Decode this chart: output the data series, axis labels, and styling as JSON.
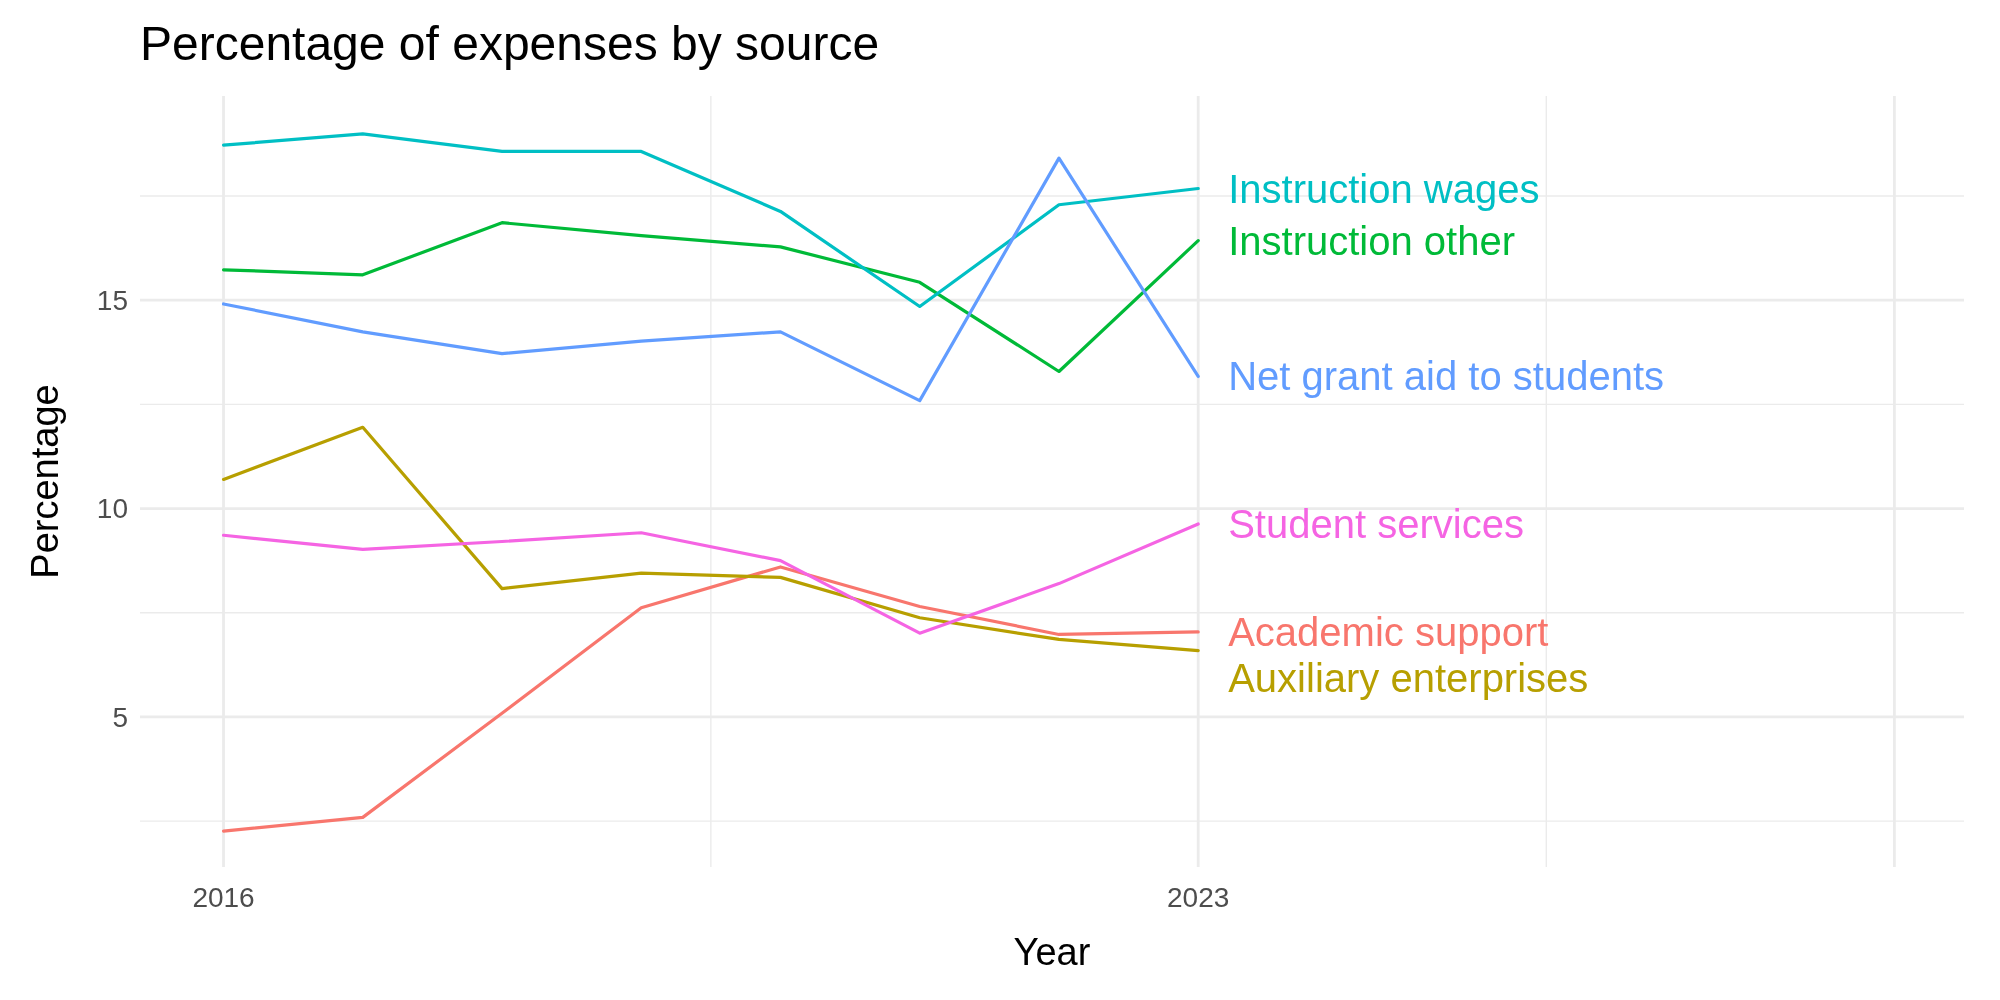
{
  "chart_data": {
    "type": "line",
    "title": "Percentage of expenses by source",
    "xlabel": "Year",
    "ylabel": "Percentage",
    "x": [
      2016,
      2017,
      2018,
      2019,
      2020,
      2021,
      2022,
      2023
    ],
    "xlim": [
      2015.4,
      2028.5
    ],
    "xticks": [
      2016,
      2023,
      {
        "value": 2028,
        "label": null
      }
    ],
    "ylim": [
      1.4,
      19.9
    ],
    "yticks": [
      5,
      10,
      15
    ],
    "grid": true,
    "line_style": "solid",
    "marker": "none",
    "series": [
      {
        "name": "Academic support",
        "color": "#f8766d",
        "values": [
          2.26,
          2.59,
          5.09,
          7.62,
          8.6,
          7.65,
          6.98,
          7.04
        ]
      },
      {
        "name": "Auxiliary enterprises",
        "color": "#b79f00",
        "values": [
          10.7,
          11.95,
          8.08,
          8.45,
          8.35,
          7.38,
          6.86,
          6.59
        ]
      },
      {
        "name": "Instruction other",
        "color": "#00ba38",
        "values": [
          15.73,
          15.61,
          16.86,
          16.55,
          16.28,
          15.43,
          13.29,
          16.43
        ]
      },
      {
        "name": "Instruction wages",
        "color": "#00bfc4",
        "values": [
          18.72,
          18.99,
          18.57,
          18.57,
          17.13,
          14.85,
          17.29,
          17.68
        ]
      },
      {
        "name": "Net grant aid to students",
        "color": "#619cff",
        "values": [
          14.91,
          14.24,
          13.72,
          14.02,
          14.24,
          12.59,
          18.41,
          13.17
        ]
      },
      {
        "name": "Student services",
        "color": "#f564e3",
        "values": [
          9.36,
          9.02,
          9.21,
          9.42,
          8.75,
          7.01,
          8.2,
          9.63
        ]
      }
    ]
  }
}
